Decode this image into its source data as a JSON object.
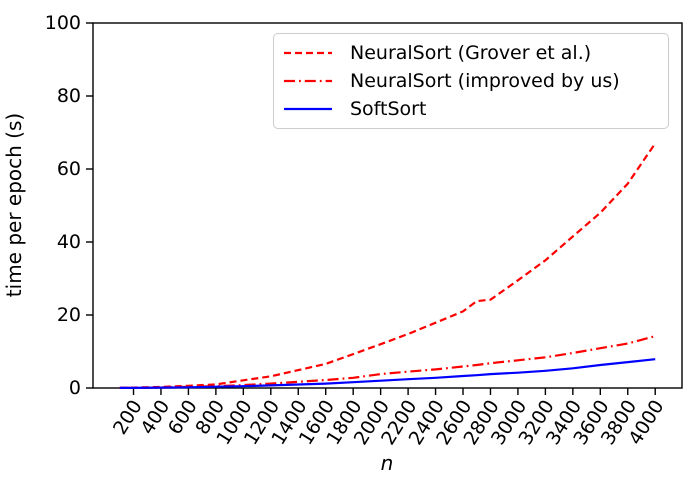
{
  "figure": {
    "background": "#ffffff",
    "text_color": "#000000"
  },
  "chart_data": {
    "type": "line",
    "title": "",
    "xlabel": "n",
    "ylabel": "time per epoch (s)",
    "xlim": [
      -95,
      4195
    ],
    "ylim": [
      0,
      100
    ],
    "x_ticks": [
      200,
      400,
      600,
      800,
      1000,
      1200,
      1400,
      1600,
      1800,
      2000,
      2200,
      2400,
      2600,
      2800,
      3000,
      3200,
      3400,
      3600,
      3800,
      4000
    ],
    "y_ticks": [
      0,
      20,
      40,
      60,
      80,
      100
    ],
    "x_tick_rotation_deg": 58,
    "grid": false,
    "legend_position": "upper right",
    "x": [
      100,
      200,
      400,
      600,
      800,
      1000,
      1200,
      1400,
      1600,
      1800,
      2000,
      2200,
      2400,
      2600,
      2700,
      2800,
      3000,
      3200,
      3400,
      3600,
      3800,
      4000
    ],
    "series": [
      {
        "name": "NeuralSort (Grover et al.)",
        "color": "#ff0000",
        "style": "dashed",
        "values": [
          0.05,
          0.1,
          0.3,
          0.6,
          1.0,
          2.1,
          3.2,
          4.9,
          6.6,
          9.3,
          12.0,
          14.8,
          17.9,
          21.0,
          23.8,
          24.2,
          29.5,
          35.0,
          41.5,
          48.0,
          56.0,
          67.0
        ]
      },
      {
        "name": "NeuralSort (improved by us)",
        "color": "#ff0000",
        "style": "dashdot",
        "values": [
          0.02,
          0.05,
          0.15,
          0.3,
          0.5,
          0.8,
          1.2,
          1.7,
          2.2,
          2.8,
          3.8,
          4.5,
          5.1,
          5.9,
          6.3,
          6.8,
          7.6,
          8.4,
          9.6,
          10.9,
          12.2,
          14.2
        ]
      },
      {
        "name": "SoftSort",
        "color": "#0000ff",
        "style": "solid",
        "values": [
          0.02,
          0.04,
          0.1,
          0.2,
          0.35,
          0.5,
          0.7,
          0.95,
          1.2,
          1.6,
          2.0,
          2.4,
          2.8,
          3.3,
          3.5,
          3.8,
          4.2,
          4.7,
          5.4,
          6.3,
          7.1,
          7.9
        ]
      }
    ]
  }
}
